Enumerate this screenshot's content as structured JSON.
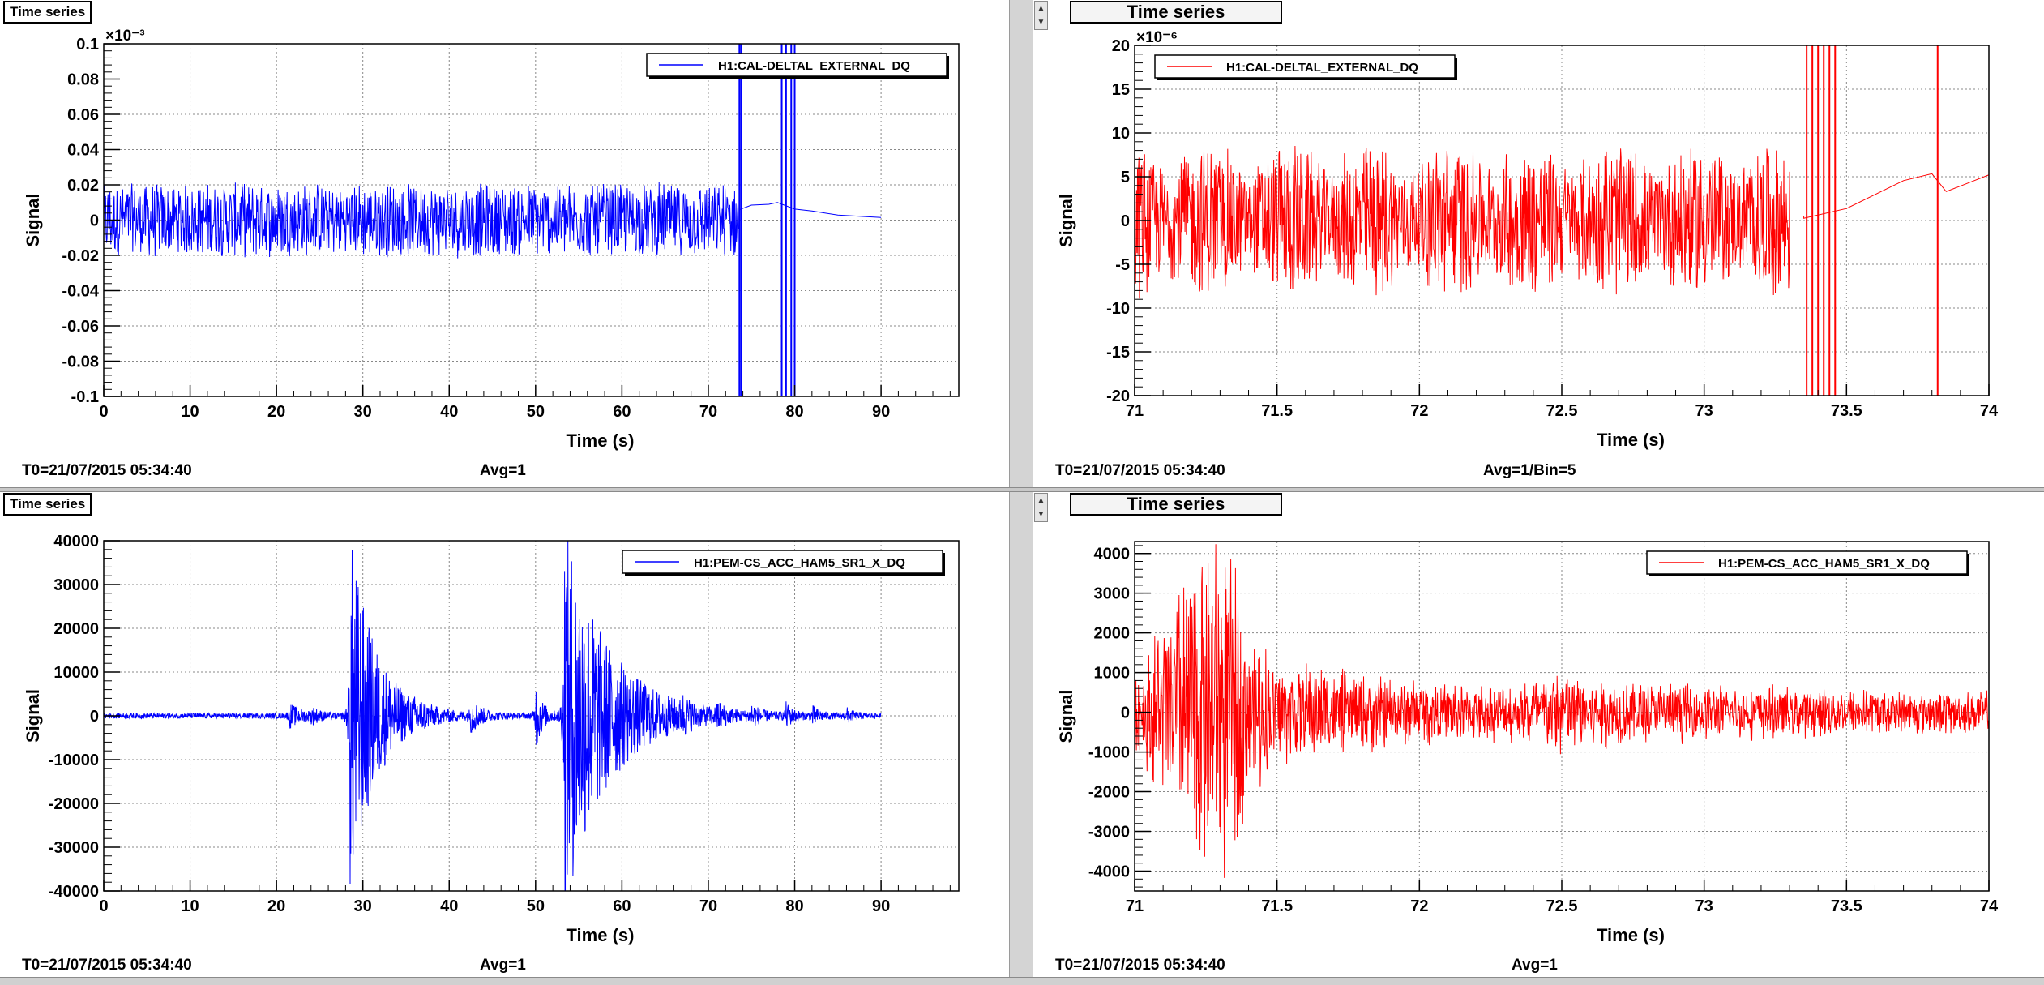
{
  "panels": [
    {
      "tab_label": "Time series",
      "footer": {
        "t0": "T0=21/07/2015 05:34:40",
        "avg": "Avg=1"
      },
      "chart_data": {
        "type": "line",
        "xlabel": "Time (s)",
        "ylabel": "Signal",
        "y_exponent": "×10⁻³",
        "xlim": [
          0,
          99
        ],
        "ylim": [
          -0.1,
          0.1
        ],
        "x_ticks": [
          "0",
          "10",
          "20",
          "30",
          "40",
          "50",
          "60",
          "70",
          "80",
          "90"
        ],
        "y_ticks": [
          "-0.1",
          "-0.08",
          "-0.06",
          "-0.04",
          "-0.02",
          "0",
          "0.02",
          "0.04",
          "0.06",
          "0.08",
          "0.1"
        ],
        "grid": true,
        "legend_position": "top-right",
        "series": [
          {
            "name": "H1:CAL-DELTAL_EXTERNAL_DQ",
            "color": "#0000ff",
            "noise_regions": [
              {
                "x": [
                  0,
                  73.5
                ],
                "amplitude": 0.022
              }
            ],
            "spikes": [
              73.6,
              73.8,
              78.5,
              79.0,
              79.6,
              80.0
            ],
            "tail": [
              [
                73.6,
                0.006
              ],
              [
                75,
                0.008
              ],
              [
                77,
                0.009
              ],
              [
                78,
                0.01
              ],
              [
                80,
                0.007
              ],
              [
                82,
                0.005
              ],
              [
                85,
                0.004
              ],
              [
                90,
                0.002
              ]
            ]
          }
        ]
      }
    },
    {
      "tab_label": "Time series",
      "footer": {
        "t0": "T0=21/07/2015 05:34:40",
        "avg": "Avg=1/Bin=5"
      },
      "chart_data": {
        "type": "line",
        "xlabel": "Time (s)",
        "ylabel": "Signal",
        "y_exponent": "×10⁻⁶",
        "xlim": [
          71,
          74
        ],
        "ylim": [
          -20,
          20
        ],
        "x_ticks": [
          "71",
          "71.5",
          "72",
          "72.5",
          "73",
          "73.5",
          "74"
        ],
        "y_ticks": [
          "-20",
          "-15",
          "-10",
          "-5",
          "0",
          "5",
          "10",
          "15",
          "20"
        ],
        "grid": true,
        "legend_position": "top-left",
        "series": [
          {
            "name": "H1:CAL-DELTAL_EXTERNAL_DQ",
            "color": "#ff0000",
            "noise_regions": [
              {
                "x": [
                  71,
                  73.3
                ],
                "amplitude": 7,
                "bursty": true
              }
            ],
            "spikes": [
              73.36,
              73.38,
              73.4,
              73.42,
              73.44,
              73.46,
              73.82
            ],
            "tail": [
              [
                73.35,
                0.5
              ],
              [
                73.5,
                1.5
              ],
              [
                73.7,
                4.5
              ],
              [
                73.8,
                5.5
              ],
              [
                73.85,
                3.5
              ],
              [
                74,
                5
              ]
            ]
          }
        ]
      }
    },
    {
      "tab_label": "Time series",
      "footer": {
        "t0": "T0=21/07/2015 05:34:40",
        "avg": "Avg=1"
      },
      "chart_data": {
        "type": "line",
        "xlabel": "Time (s)",
        "ylabel": "Signal",
        "y_exponent": "",
        "xlim": [
          0,
          99
        ],
        "ylim": [
          -40000,
          40000
        ],
        "x_ticks": [
          "0",
          "10",
          "20",
          "30",
          "40",
          "50",
          "60",
          "70",
          "80",
          "90"
        ],
        "y_ticks": [
          "-40000",
          "-30000",
          "-20000",
          "-10000",
          "0",
          "10000",
          "20000",
          "30000",
          "40000"
        ],
        "grid": true,
        "legend_position": "top-right",
        "series": [
          {
            "name": "H1:PEM-CS_ACC_HAM5_SR1_X_DQ",
            "color": "#0000ff",
            "baseline_amplitude": 600,
            "bursts": [
              {
                "x": 21.5,
                "amp": 2500,
                "decay": 1.5
              },
              {
                "x": 24,
                "amp": 1500,
                "decay": 1
              },
              {
                "x": 28.5,
                "amp": 42000,
                "decay": 3
              },
              {
                "x": 36,
                "amp": 1500,
                "decay": 1
              },
              {
                "x": 42.5,
                "amp": 3500,
                "decay": 1.2
              },
              {
                "x": 50,
                "amp": 8000,
                "decay": 0.8
              },
              {
                "x": 53.3,
                "amp": 45000,
                "decay": 5
              },
              {
                "x": 67,
                "amp": 2500,
                "decay": 0.8
              },
              {
                "x": 71,
                "amp": 2500,
                "decay": 0.8
              },
              {
                "x": 75,
                "amp": 2500,
                "decay": 0.8
              },
              {
                "x": 79,
                "amp": 2500,
                "decay": 0.8
              },
              {
                "x": 82,
                "amp": 2000,
                "decay": 0.8
              },
              {
                "x": 86,
                "amp": 1500,
                "decay": 0.8
              }
            ],
            "x_end": 90
          }
        ]
      }
    },
    {
      "tab_label": "Time series",
      "footer": {
        "t0": "T0=21/07/2015 05:34:40",
        "avg": "Avg=1"
      },
      "chart_data": {
        "type": "line",
        "xlabel": "Time (s)",
        "ylabel": "Signal",
        "y_exponent": "",
        "xlim": [
          71,
          74
        ],
        "ylim": [
          -4500,
          4300
        ],
        "x_ticks": [
          "71",
          "71.5",
          "72",
          "72.5",
          "73",
          "73.5",
          "74"
        ],
        "y_ticks": [
          "-4000",
          "-3000",
          "-2000",
          "-1000",
          "0",
          "1000",
          "2000",
          "3000",
          "4000"
        ],
        "grid": true,
        "legend_position": "top-right",
        "series": [
          {
            "name": "H1:PEM-CS_ACC_HAM5_SR1_X_DQ",
            "color": "#ff0000",
            "envelope": [
              [
                71,
                800
              ],
              [
                71.1,
                2000
              ],
              [
                71.2,
                3500
              ],
              [
                71.3,
                3800
              ],
              [
                71.4,
                2000
              ],
              [
                71.5,
                1200
              ],
              [
                71.7,
                900
              ],
              [
                72.0,
                700
              ],
              [
                72.3,
                600
              ],
              [
                72.5,
                1000
              ],
              [
                72.7,
                700
              ],
              [
                73.0,
                600
              ],
              [
                73.5,
                500
              ],
              [
                74,
                450
              ]
            ]
          }
        ]
      }
    }
  ]
}
